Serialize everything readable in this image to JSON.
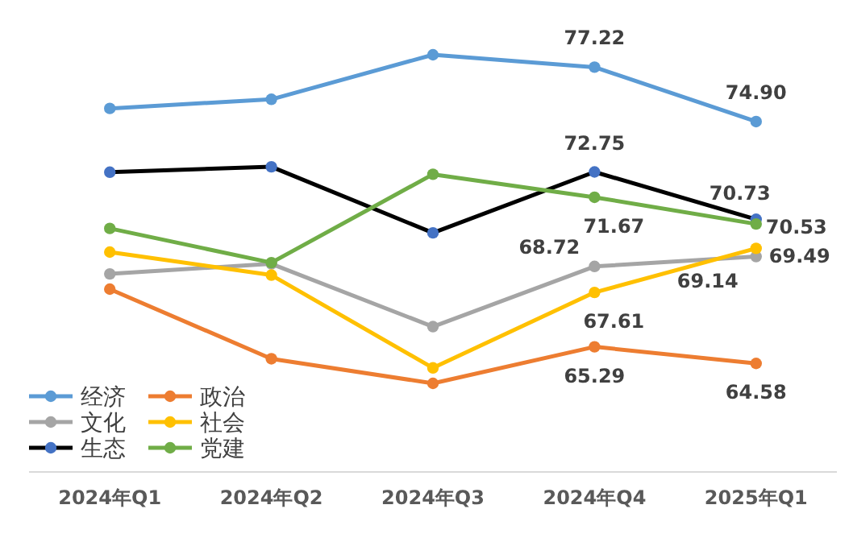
{
  "chart_data": {
    "type": "line",
    "categories": [
      "2024年Q1",
      "2024年Q2",
      "2024年Q3",
      "2024年Q4",
      "2025年Q1"
    ],
    "marker": "circle",
    "legend": "bottom left",
    "series": [
      {
        "name": "经济",
        "color": "#5b9bd5",
        "values": [
          75.46,
          75.85,
          77.75,
          77.22,
          74.9
        ],
        "value_labels": [
          null,
          null,
          null,
          "77.22",
          "74.90"
        ]
      },
      {
        "name": "政治",
        "color": "#ed7d31",
        "values": [
          67.75,
          64.78,
          63.73,
          65.29,
          64.58
        ],
        "value_labels": [
          null,
          null,
          null,
          "65.29",
          "64.58"
        ]
      },
      {
        "name": "文化",
        "color": "#a5a5a5",
        "values": [
          68.4,
          68.83,
          66.15,
          68.72,
          69.14
        ],
        "value_labels": [
          null,
          null,
          null,
          "68.72",
          "69.14"
        ]
      },
      {
        "name": "社会",
        "color": "#ffc000",
        "values": [
          69.33,
          68.35,
          64.39,
          67.61,
          69.49
        ],
        "value_labels": [
          null,
          null,
          null,
          "67.61",
          "69.49"
        ]
      },
      {
        "name": "生态",
        "color": "#000000",
        "colors": [
          "#4472c4",
          "#4472c4",
          "#4472c4",
          "#4472c4",
          "#4472c4"
        ],
        "values": [
          72.74,
          72.97,
          70.15,
          72.75,
          70.73
        ],
        "value_labels": [
          null,
          null,
          null,
          "72.75",
          "70.73"
        ]
      },
      {
        "name": "党建",
        "color": "#70ad47",
        "values": [
          70.34,
          68.88,
          72.65,
          71.67,
          70.53
        ],
        "value_labels": [
          null,
          null,
          null,
          "71.67",
          "70.53"
        ]
      }
    ]
  }
}
